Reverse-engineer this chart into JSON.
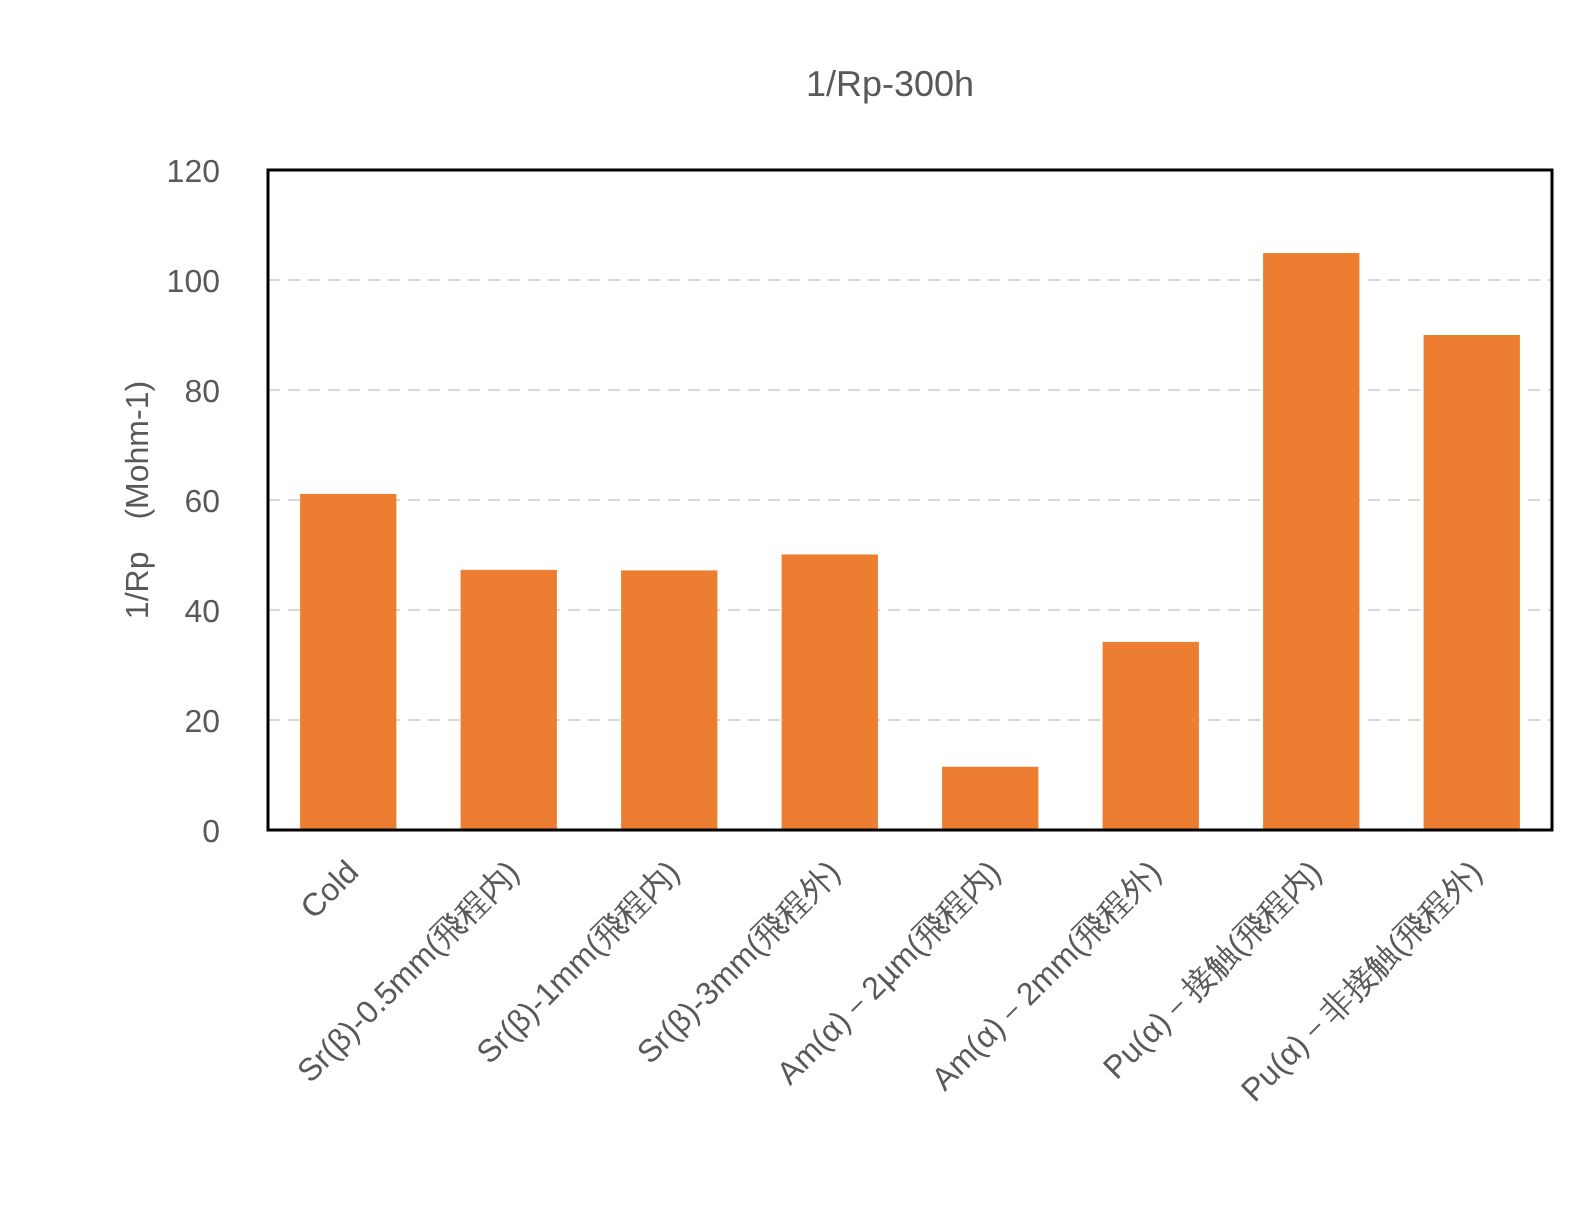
{
  "chart_data": {
    "type": "bar",
    "title": "1/Rp-300h",
    "ylabel": "1/Rp　(Mohm-1)",
    "categories": [
      "Cold",
      "Sr(β)-0.5mm(飛程内)",
      "Sr(β)-1mm(飛程内)",
      "Sr(β)-3mm(飛程外)",
      "Am(α)－2µm(飛程内)",
      "Am(α)－2mm(飛程外)",
      "Pu(α)－接触(飛程内)",
      "Pu(α)－非接触(飛程外)"
    ],
    "values": [
      61.1,
      47.3,
      47.2,
      50.1,
      11.5,
      34.2,
      104.9,
      90.0
    ],
    "color": "#ed7d31",
    "ylim": [
      0,
      120
    ],
    "yticks": [
      0,
      20,
      40,
      60,
      80,
      100,
      120
    ],
    "grid": "y"
  }
}
